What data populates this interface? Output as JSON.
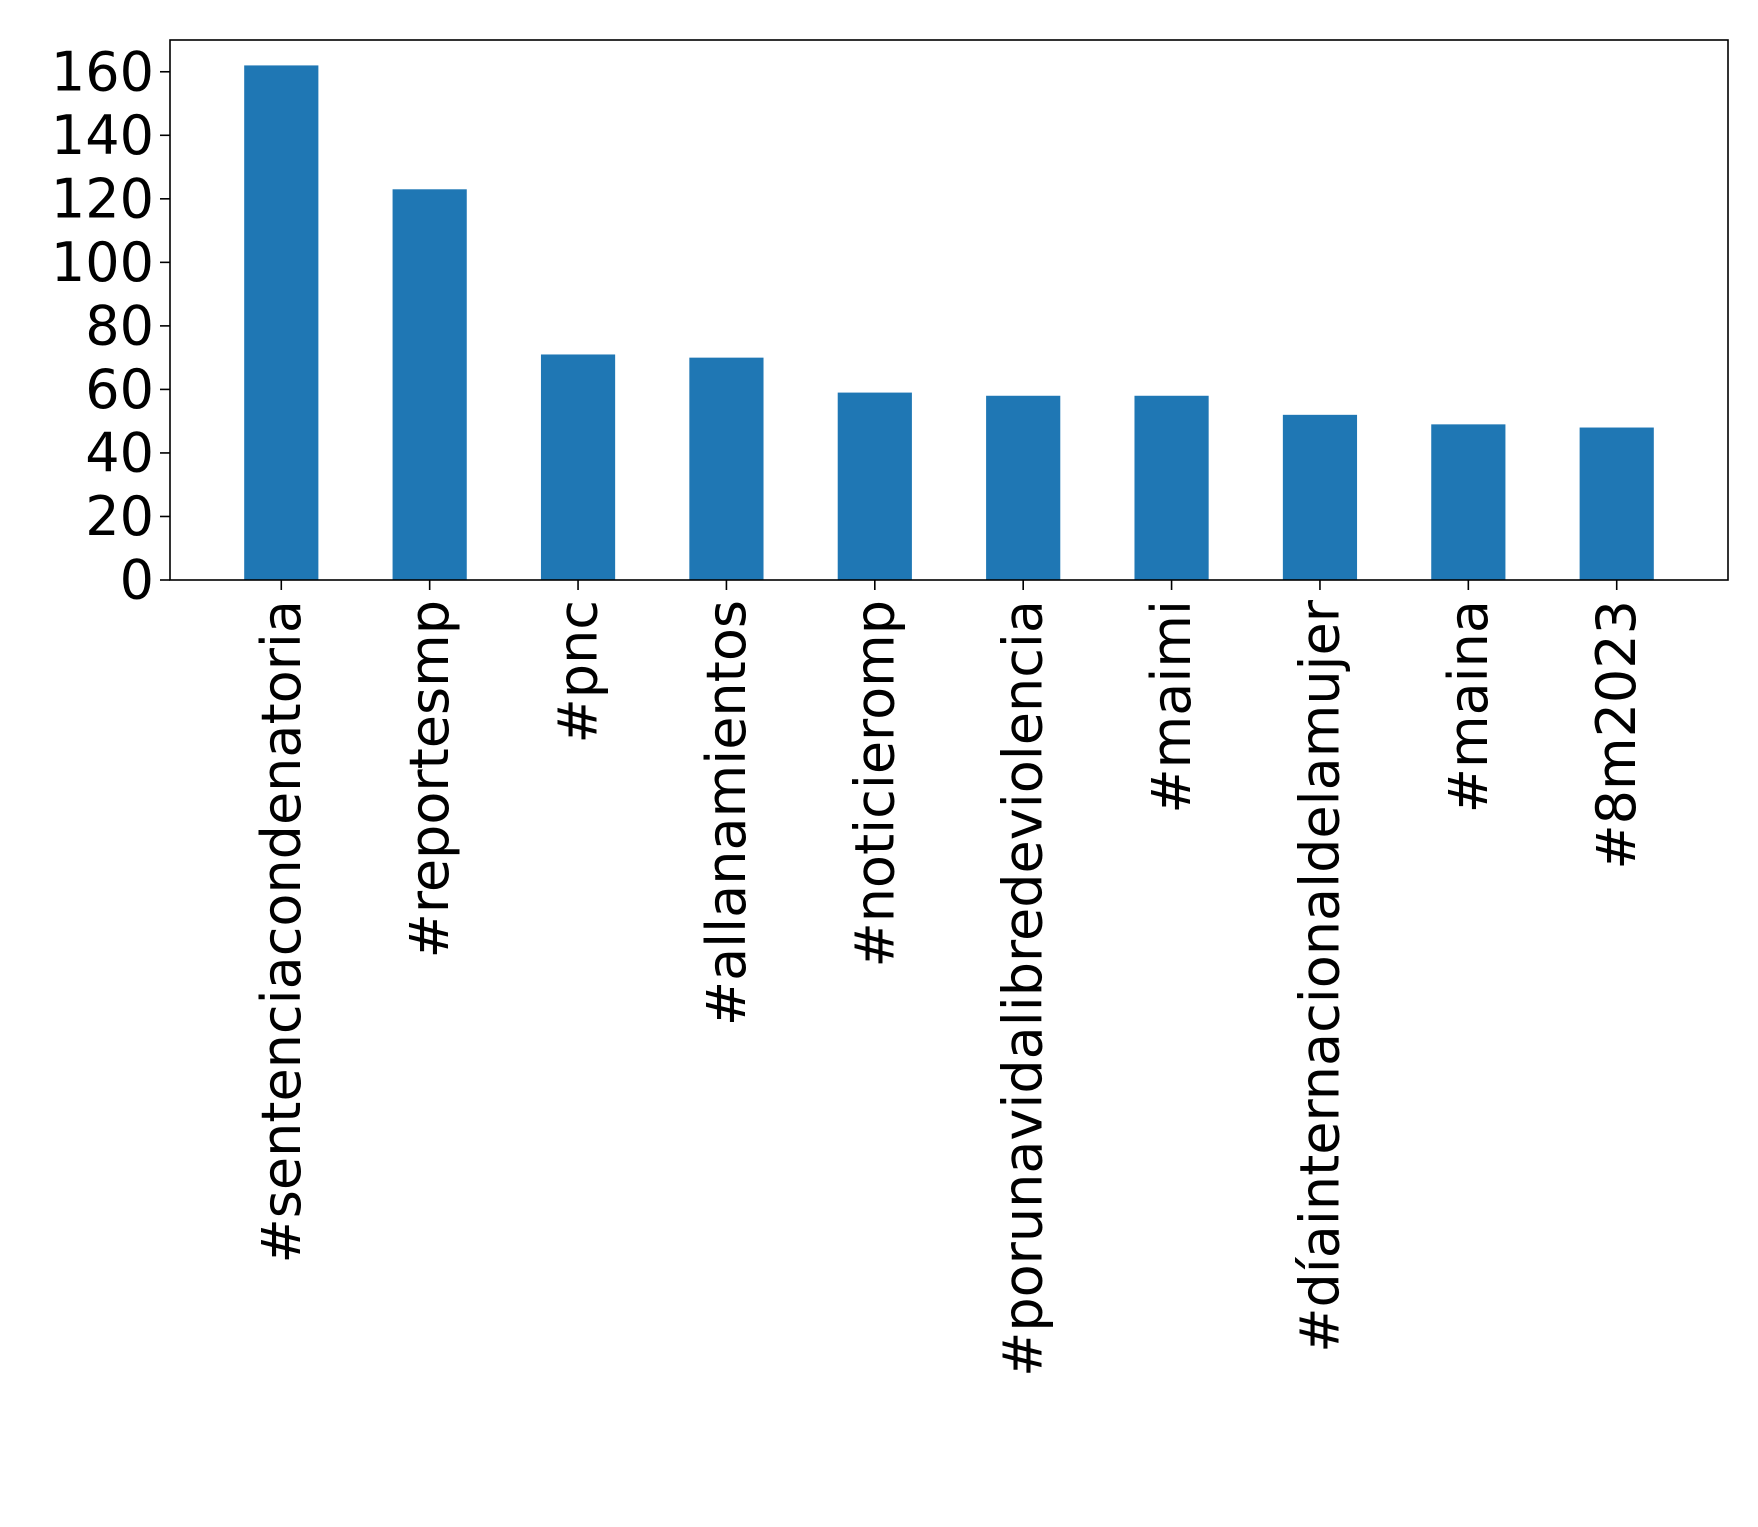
{
  "chart_data": {
    "type": "bar",
    "title": "",
    "xlabel": "",
    "ylabel": "",
    "categories": [
      "#sentenciacondenatoria",
      "#reportesmp",
      "#pnc",
      "#allanamientos",
      "#noticieromp",
      "#porunavidalibredeviolencia",
      "#maimi",
      "#díainternacionaldelamujer",
      "#maina",
      "#8m2023"
    ],
    "values": [
      162,
      123,
      71,
      70,
      59,
      58,
      58,
      52,
      49,
      48
    ],
    "ylim": [
      0,
      170
    ],
    "yticks": [
      "0",
      "20",
      "40",
      "60",
      "80",
      "100",
      "120",
      "140",
      "160"
    ],
    "grid": false,
    "bar_color": "#1f77b4"
  }
}
